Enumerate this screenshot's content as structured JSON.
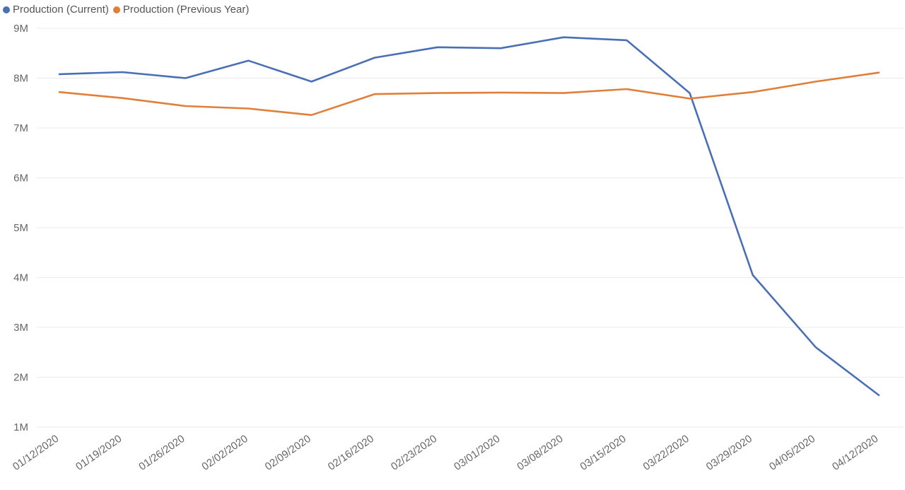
{
  "chart_data": {
    "type": "line",
    "title": "",
    "xlabel": "",
    "ylabel": "",
    "legend_position": "top-left",
    "grid": true,
    "ylim": [
      1000000,
      9000000
    ],
    "y_ticks": [
      {
        "value": 9000000,
        "label": "9M"
      },
      {
        "value": 8000000,
        "label": "8M"
      },
      {
        "value": 7000000,
        "label": "7M"
      },
      {
        "value": 6000000,
        "label": "6M"
      },
      {
        "value": 5000000,
        "label": "5M"
      },
      {
        "value": 4000000,
        "label": "4M"
      },
      {
        "value": 3000000,
        "label": "3M"
      },
      {
        "value": 2000000,
        "label": "2M"
      },
      {
        "value": 1000000,
        "label": "1M"
      }
    ],
    "categories": [
      "01/12/2020",
      "01/19/2020",
      "01/26/2020",
      "02/02/2020",
      "02/09/2020",
      "02/16/2020",
      "02/23/2020",
      "03/01/2020",
      "03/08/2020",
      "03/15/2020",
      "03/22/2020",
      "03/29/2020",
      "04/05/2020",
      "04/12/2020"
    ],
    "series": [
      {
        "name": "Production (Current)",
        "color": "#4a6fb5",
        "values": [
          8080000,
          8120000,
          8000000,
          8350000,
          7930000,
          8410000,
          8620000,
          8600000,
          8820000,
          8760000,
          7700000,
          4050000,
          2600000,
          1640000
        ]
      },
      {
        "name": "Production (Previous Year)",
        "color": "#e07f3a",
        "values": [
          7720000,
          7600000,
          7440000,
          7390000,
          7260000,
          7680000,
          7700000,
          7710000,
          7700000,
          7780000,
          7590000,
          7720000,
          7930000,
          8110000
        ]
      }
    ]
  }
}
